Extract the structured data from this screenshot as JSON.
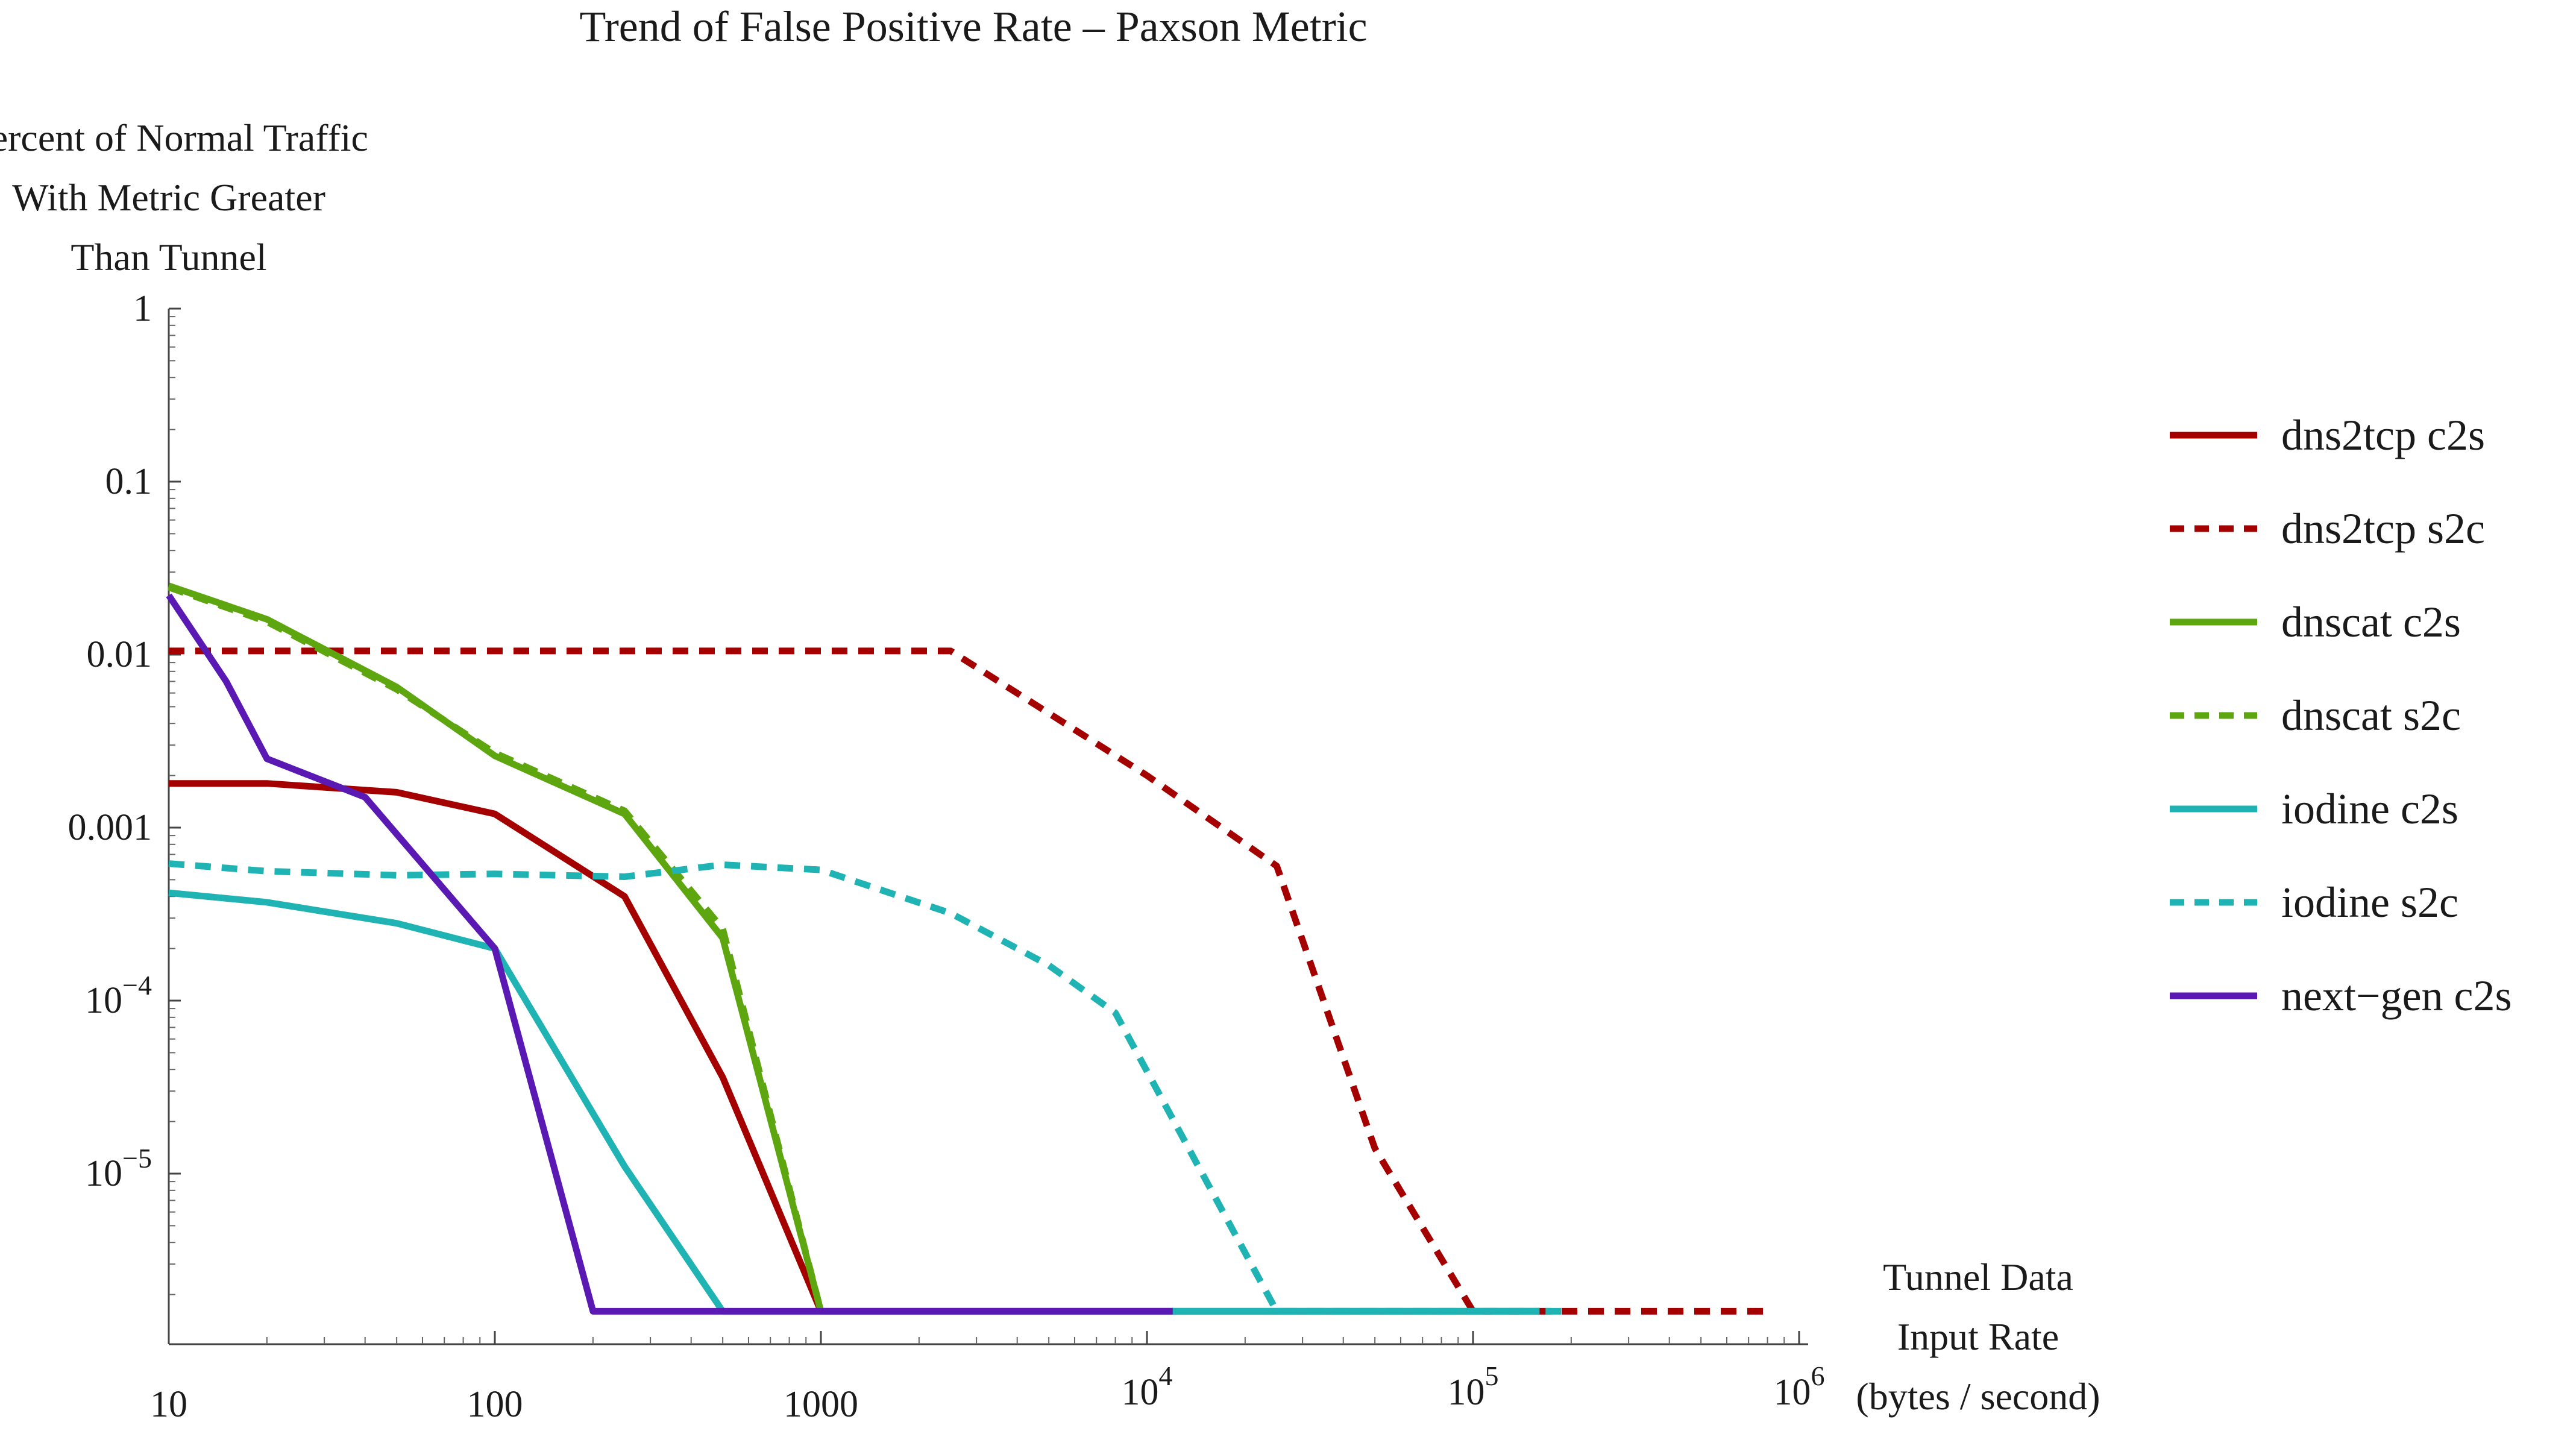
{
  "chart_data": {
    "type": "line",
    "title": "Trend of False Positive Rate – Paxson Metric",
    "ylabel": [
      "Percent of Normal Traffic",
      "With Metric Greater",
      "Than Tunnel"
    ],
    "xlabel": [
      "Tunnel Data",
      "Input Rate",
      "(bytes / second)"
    ],
    "x_scale": "log",
    "y_scale": "log",
    "xlim": [
      10,
      1000000
    ],
    "ylim": [
      1.5e-07,
      1
    ],
    "x_ticks": [
      {
        "value": 10,
        "base": "10",
        "exp": ""
      },
      {
        "value": 100,
        "base": "100",
        "exp": ""
      },
      {
        "value": 1000,
        "base": "1000",
        "exp": ""
      },
      {
        "value": 10000,
        "base": "10",
        "exp": "4"
      },
      {
        "value": 100000,
        "base": "10",
        "exp": "5"
      },
      {
        "value": 1000000,
        "base": "10",
        "exp": "6"
      }
    ],
    "y_ticks": [
      {
        "value": 1,
        "base": "1",
        "exp": ""
      },
      {
        "value": 0.1,
        "base": "0.1",
        "exp": ""
      },
      {
        "value": 0.01,
        "base": "0.01",
        "exp": ""
      },
      {
        "value": 0.001,
        "base": "0.001",
        "exp": ""
      },
      {
        "value": 0.0001,
        "base": "10",
        "exp": "−4"
      },
      {
        "value": 1e-05,
        "base": "10",
        "exp": "−5"
      }
    ],
    "grid": false,
    "legend_position": "right",
    "series": [
      {
        "name": "dns2tcp c2s",
        "color": "#a40000",
        "dashed": false,
        "points": [
          [
            10,
            0.0018
          ],
          [
            20,
            0.0018
          ],
          [
            50,
            0.0016
          ],
          [
            100,
            0.0012
          ],
          [
            250,
            0.0004
          ],
          [
            500,
            3.6e-05
          ],
          [
            1000,
            1.6e-06
          ],
          [
            160000,
            1.6e-06
          ]
        ]
      },
      {
        "name": "dns2tcp s2c",
        "color": "#a40000",
        "dashed": true,
        "points": [
          [
            10,
            0.0105
          ],
          [
            2500,
            0.0105
          ],
          [
            10000,
            0.002
          ],
          [
            25000,
            0.0006
          ],
          [
            50000,
            1.4e-05
          ],
          [
            100000,
            1.6e-06
          ],
          [
            800000,
            1.6e-06
          ]
        ]
      },
      {
        "name": "dnscat c2s",
        "color": "#5da60f",
        "dashed": false,
        "points": [
          [
            10,
            0.025
          ],
          [
            20,
            0.016
          ],
          [
            50,
            0.0065
          ],
          [
            100,
            0.0026
          ],
          [
            250,
            0.0012
          ],
          [
            500,
            0.00023
          ],
          [
            1000,
            1.6e-06
          ]
        ]
      },
      {
        "name": "dnscat s2c",
        "color": "#5da60f",
        "dashed": true,
        "points": [
          [
            10,
            0.0245
          ],
          [
            20,
            0.0155
          ],
          [
            50,
            0.0063
          ],
          [
            100,
            0.0027
          ],
          [
            250,
            0.00125
          ],
          [
            500,
            0.00026
          ],
          [
            1000,
            1.6e-06
          ]
        ]
      },
      {
        "name": "iodine c2s",
        "color": "#1fb3b3",
        "dashed": false,
        "points": [
          [
            10,
            0.00042
          ],
          [
            20,
            0.00037
          ],
          [
            50,
            0.00028
          ],
          [
            100,
            0.0002
          ],
          [
            250,
            1.1e-05
          ],
          [
            500,
            1.6e-06
          ],
          [
            160000,
            1.6e-06
          ]
        ]
      },
      {
        "name": "iodine s2c",
        "color": "#1fb3b3",
        "dashed": true,
        "points": [
          [
            10,
            0.00062
          ],
          [
            20,
            0.00056
          ],
          [
            50,
            0.00053
          ],
          [
            100,
            0.00054
          ],
          [
            250,
            0.00052
          ],
          [
            500,
            0.00061
          ],
          [
            1000,
            0.00057
          ],
          [
            2500,
            0.00032
          ],
          [
            5000,
            0.00016
          ],
          [
            8000,
            8.5e-05
          ],
          [
            25000,
            1.6e-06
          ],
          [
            200000,
            1.6e-06
          ]
        ]
      },
      {
        "name": "next−gen c2s",
        "color": "#5a19b3",
        "dashed": false,
        "points": [
          [
            10,
            0.022
          ],
          [
            15,
            0.007
          ],
          [
            20,
            0.0025
          ],
          [
            40,
            0.0015
          ],
          [
            100,
            0.0002
          ],
          [
            200,
            1.6e-06
          ],
          [
            12000,
            1.6e-06
          ]
        ]
      }
    ]
  }
}
